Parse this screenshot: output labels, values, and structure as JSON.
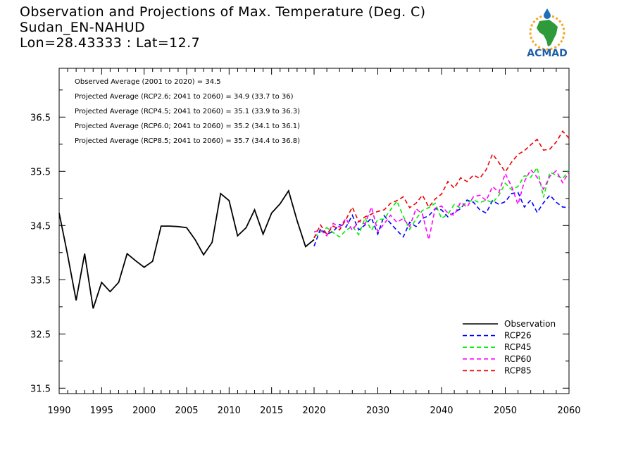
{
  "header": {
    "title": "Observation and Projections of Max. Temperature (Deg. C)",
    "station": "Sudan_EN-NAHUD",
    "coords": "Lon=28.43333 : Lat=12.7"
  },
  "logo": {
    "text": "ACMAD",
    "icon": "acmad-africa-sun-logo"
  },
  "annotations": [
    "Observed Average (2001 to 2020) = 34.5",
    "Projected Average (RCP2.6; 2041 to 2060) = 34.9 (33.7 to 36)",
    "Projected Average (RCP4.5; 2041 to 2060) = 35.1 (33.9 to 36.3)",
    "Projected Average (RCP6.0; 2041 to 2060) = 35.2 (34.1 to 36.1)",
    "Projected Average (RCP8.5; 2041 to 2060) = 35.7 (34.4 to 36.8)"
  ],
  "chart_data": {
    "type": "line",
    "title": "Observation and Projections of Max. Temperature (Deg. C)",
    "xlabel": "",
    "ylabel": "",
    "xlim": [
      1990,
      2060
    ],
    "ylim": [
      31.4,
      37.4
    ],
    "x_ticks": [
      1990,
      1995,
      2000,
      2005,
      2010,
      2015,
      2020,
      2030,
      2040,
      2050,
      2060
    ],
    "y_ticks": [
      31.5,
      32.5,
      33.5,
      34.5,
      35.5,
      36.5
    ],
    "y_tick_labels": [
      "31.5",
      "32.5",
      "33.5",
      "34.5",
      "35.5",
      "36.5"
    ],
    "legend_position": "bottom-right",
    "grid": false,
    "series": [
      {
        "name": "Observation",
        "color": "#000000",
        "dashed": false,
        "x": [
          1990,
          1991,
          1992,
          1993,
          1994,
          1995,
          1996,
          1997,
          1998,
          1999,
          2000,
          2001,
          2002,
          2003,
          2004,
          2005,
          2006,
          2007,
          2008,
          2009,
          2010,
          2011,
          2012,
          2013,
          2014,
          2015,
          2016,
          2017,
          2018,
          2019,
          2020
        ],
        "y": [
          34.73,
          33.95,
          33.12,
          33.98,
          32.97,
          33.45,
          33.28,
          33.45,
          33.98,
          33.85,
          33.73,
          33.84,
          34.49,
          34.49,
          34.48,
          34.46,
          34.24,
          33.96,
          34.19,
          35.09,
          34.96,
          34.31,
          34.46,
          34.79,
          34.34,
          34.73,
          34.9,
          35.14,
          34.59,
          34.11,
          34.24
        ]
      },
      {
        "name": "RCP26",
        "color": "#0000ff",
        "dashed": true,
        "x": [
          2020,
          2021,
          2022,
          2023,
          2024,
          2025,
          2026,
          2027,
          2028,
          2029,
          2030,
          2031,
          2032,
          2033,
          2034,
          2035,
          2036,
          2037,
          2038,
          2039,
          2040,
          2041,
          2042,
          2043,
          2044,
          2045,
          2046,
          2047,
          2048,
          2049,
          2050,
          2051,
          2052,
          2053,
          2054,
          2055,
          2056,
          2057,
          2058,
          2059,
          2060
        ],
        "y": [
          34.12,
          34.44,
          34.34,
          34.39,
          34.52,
          34.47,
          34.69,
          34.42,
          34.51,
          34.64,
          34.34,
          34.68,
          34.54,
          34.41,
          34.29,
          34.56,
          34.48,
          34.63,
          34.68,
          34.81,
          34.79,
          34.66,
          34.74,
          34.81,
          34.97,
          34.93,
          34.79,
          34.73,
          34.96,
          34.89,
          34.94,
          35.09,
          35.11,
          34.84,
          34.97,
          34.74,
          34.92,
          35.06,
          34.93,
          34.84,
          34.83
        ]
      },
      {
        "name": "RCP45",
        "color": "#00ee00",
        "dashed": true,
        "x": [
          2020,
          2021,
          2022,
          2023,
          2024,
          2025,
          2026,
          2027,
          2028,
          2029,
          2030,
          2031,
          2032,
          2033,
          2034,
          2035,
          2036,
          2037,
          2038,
          2039,
          2040,
          2041,
          2042,
          2043,
          2044,
          2045,
          2046,
          2047,
          2048,
          2049,
          2050,
          2051,
          2052,
          2053,
          2054,
          2055,
          2056,
          2057,
          2058,
          2059,
          2060
        ],
        "y": [
          34.29,
          34.38,
          34.46,
          34.37,
          34.29,
          34.41,
          34.49,
          34.33,
          34.64,
          34.41,
          34.61,
          34.62,
          34.79,
          34.95,
          34.67,
          34.43,
          34.62,
          34.78,
          34.83,
          34.91,
          34.63,
          34.71,
          34.89,
          34.82,
          34.93,
          34.97,
          34.92,
          34.97,
          34.92,
          35.06,
          35.28,
          35.16,
          35.22,
          35.42,
          35.39,
          35.57,
          35.02,
          35.48,
          35.43,
          35.36,
          35.53
        ]
      },
      {
        "name": "RCP60",
        "color": "#ff00ff",
        "dashed": true,
        "x": [
          2020,
          2021,
          2022,
          2023,
          2024,
          2025,
          2026,
          2027,
          2028,
          2029,
          2030,
          2031,
          2032,
          2033,
          2034,
          2035,
          2036,
          2037,
          2038,
          2039,
          2040,
          2041,
          2042,
          2043,
          2044,
          2045,
          2046,
          2047,
          2048,
          2049,
          2050,
          2051,
          2052,
          2053,
          2054,
          2055,
          2056,
          2057,
          2058,
          2059,
          2060
        ],
        "y": [
          34.38,
          34.42,
          34.31,
          34.54,
          34.47,
          34.63,
          34.41,
          34.58,
          34.53,
          34.84,
          34.39,
          34.53,
          34.69,
          34.56,
          34.63,
          34.48,
          34.81,
          34.71,
          34.24,
          34.82,
          34.86,
          34.73,
          34.69,
          34.93,
          34.84,
          35.03,
          35.06,
          34.96,
          35.22,
          35.11,
          35.46,
          35.22,
          34.89,
          35.31,
          35.53,
          35.39,
          35.17,
          35.41,
          35.51,
          35.29,
          35.49
        ]
      },
      {
        "name": "RCP85",
        "color": "#ee0000",
        "dashed": true,
        "x": [
          2020,
          2021,
          2022,
          2023,
          2024,
          2025,
          2026,
          2027,
          2028,
          2029,
          2030,
          2031,
          2032,
          2033,
          2034,
          2035,
          2036,
          2037,
          2038,
          2039,
          2040,
          2041,
          2042,
          2043,
          2044,
          2045,
          2046,
          2047,
          2048,
          2049,
          2050,
          2051,
          2052,
          2053,
          2054,
          2055,
          2056,
          2057,
          2058,
          2059,
          2060
        ],
        "y": [
          34.27,
          34.51,
          34.34,
          34.49,
          34.42,
          34.61,
          34.84,
          34.57,
          34.66,
          34.71,
          34.76,
          34.79,
          34.91,
          34.96,
          35.03,
          34.83,
          34.91,
          35.06,
          34.84,
          34.99,
          35.08,
          35.31,
          35.19,
          35.38,
          35.31,
          35.43,
          35.37,
          35.53,
          35.82,
          35.66,
          35.49,
          35.67,
          35.81,
          35.88,
          35.99,
          36.09,
          35.89,
          35.91,
          36.04,
          36.24,
          36.11
        ]
      }
    ]
  }
}
